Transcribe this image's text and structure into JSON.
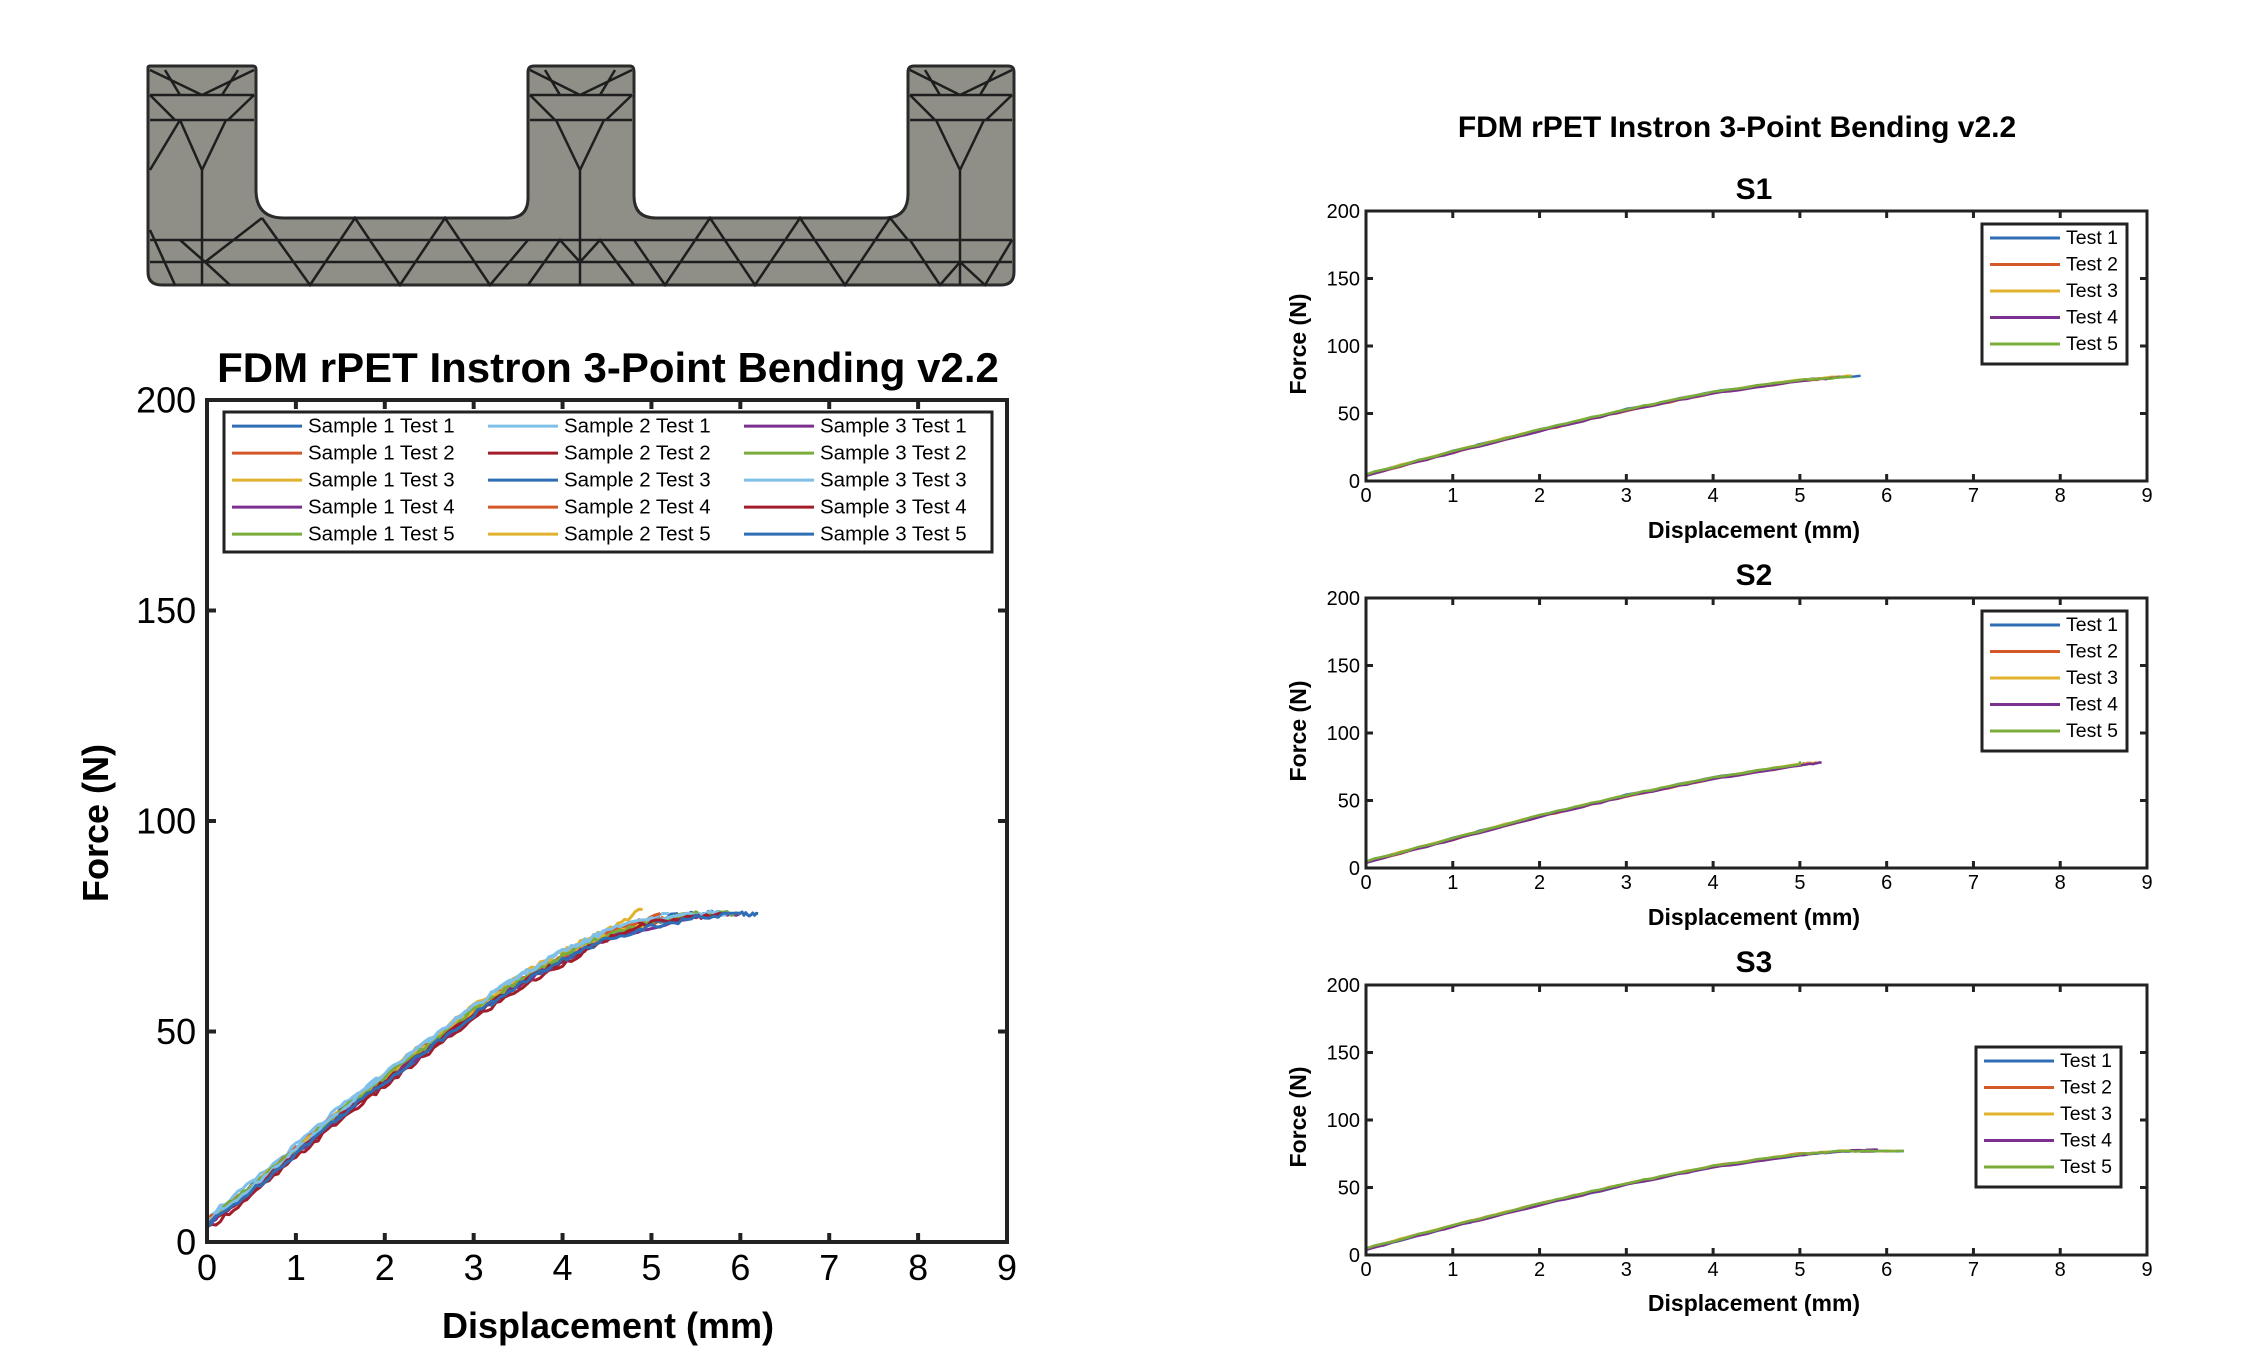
{
  "colors": {
    "blue": "#2f6db5",
    "orange": "#d4582a",
    "yellow": "#e0b22e",
    "purple": "#7b2f8e",
    "green": "#7aac3a",
    "light_blue": "#7fc0e8",
    "dark_red": "#a11d2a",
    "part_fill": "#8f8f88",
    "part_stroke": "#2a2a2a"
  },
  "part_image": {
    "description_icon": "bracket-part-icon"
  },
  "chart_data": [
    {
      "id": "combined",
      "type": "line",
      "title": "FDM rPET Instron 3-Point Bending v2.2",
      "xlabel": "Displacement (mm)",
      "ylabel": "Force (N)",
      "xlim": [
        0,
        9
      ],
      "ylim": [
        0,
        200
      ],
      "xticks": [
        "0",
        "1",
        "2",
        "3",
        "4",
        "5",
        "6",
        "7",
        "8",
        "9"
      ],
      "yticks": [
        "0",
        "50",
        "100",
        "150",
        "200"
      ],
      "grid": false,
      "legend_position": "top",
      "series": [
        {
          "name": "Sample 1 Test 1",
          "color": "#2f6db5",
          "x": [
            0,
            0.5,
            1,
            1.5,
            2,
            2.5,
            3,
            3.5,
            4,
            4.5,
            5,
            5.5,
            5.7
          ],
          "y": [
            5,
            13,
            22,
            31,
            39,
            47,
            55,
            62,
            68,
            73,
            76,
            78,
            78
          ]
        },
        {
          "name": "Sample 1 Test 2",
          "color": "#d4582a",
          "x": [
            0,
            0.5,
            1,
            1.5,
            2,
            2.5,
            3,
            3.5,
            4,
            4.5,
            5,
            5.4
          ],
          "y": [
            4,
            12,
            21,
            30,
            38,
            46,
            54,
            61,
            67,
            72,
            76,
            78
          ]
        },
        {
          "name": "Sample 1 Test 3",
          "color": "#e0b22e",
          "x": [
            0,
            0.5,
            1,
            1.5,
            2,
            2.5,
            3,
            3.5,
            4,
            4.5,
            4.9
          ],
          "y": [
            5,
            13,
            22,
            31,
            40,
            48,
            56,
            63,
            69,
            74,
            79
          ]
        },
        {
          "name": "Sample 1 Test 4",
          "color": "#7b2f8e",
          "x": [
            0,
            0.5,
            1,
            1.5,
            2,
            2.5,
            3,
            3.5,
            4,
            4.5,
            5.1
          ],
          "y": [
            4,
            12,
            21,
            30,
            38,
            46,
            54,
            61,
            67,
            73,
            77
          ]
        },
        {
          "name": "Sample 1 Test 5",
          "color": "#7aac3a",
          "x": [
            0,
            0.5,
            1,
            1.5,
            2,
            2.5,
            3,
            3.5,
            4,
            4.5,
            5,
            5.5
          ],
          "y": [
            5,
            13,
            22,
            31,
            39,
            47,
            55,
            62,
            68,
            73,
            76,
            78
          ]
        },
        {
          "name": "Sample 2 Test 1",
          "color": "#7fc0e8",
          "x": [
            0,
            0.5,
            1,
            1.5,
            2,
            2.5,
            3,
            3.5,
            4,
            4.5,
            5.2
          ],
          "y": [
            6,
            14,
            23,
            32,
            40,
            48,
            56,
            63,
            69,
            74,
            78
          ]
        },
        {
          "name": "Sample 2 Test 2",
          "color": "#a11d2a",
          "x": [
            0,
            0.5,
            1,
            1.5,
            2,
            2.5,
            3,
            3.5,
            4,
            4.5,
            5
          ],
          "y": [
            3,
            11,
            20,
            29,
            37,
            45,
            53,
            60,
            66,
            72,
            77
          ]
        },
        {
          "name": "Sample 2 Test 3",
          "color": "#2f6db5",
          "x": [
            0,
            0.5,
            1,
            1.5,
            2,
            2.5,
            3,
            3.5,
            4,
            4.5,
            5.3
          ],
          "y": [
            4,
            12,
            21,
            30,
            38,
            46,
            54,
            61,
            67,
            72,
            78
          ]
        },
        {
          "name": "Sample 2 Test 4",
          "color": "#d4582a",
          "x": [
            0,
            0.5,
            1,
            1.5,
            2,
            2.5,
            3,
            3.5,
            4,
            4.5,
            5.1
          ],
          "y": [
            5,
            13,
            22,
            31,
            39,
            47,
            55,
            62,
            68,
            73,
            78
          ]
        },
        {
          "name": "Sample 2 Test 5",
          "color": "#e0b22e",
          "x": [
            0,
            0.5,
            1,
            1.5,
            2,
            2.5,
            3,
            3.5,
            4,
            4.5,
            5.2
          ],
          "y": [
            5,
            13,
            22,
            31,
            39,
            47,
            55,
            62,
            68,
            73,
            77
          ]
        },
        {
          "name": "Sample 3 Test 1",
          "color": "#7b2f8e",
          "x": [
            0,
            0.5,
            1,
            1.5,
            2,
            2.5,
            3,
            3.5,
            4,
            4.5,
            5,
            5.5,
            6
          ],
          "y": [
            4,
            12,
            21,
            30,
            38,
            46,
            54,
            61,
            67,
            72,
            75,
            77,
            78
          ]
        },
        {
          "name": "Sample 3 Test 2",
          "color": "#7aac3a",
          "x": [
            0,
            0.5,
            1,
            1.5,
            2,
            2.5,
            3,
            3.5,
            4,
            4.5,
            5,
            5.5,
            6
          ],
          "y": [
            5,
            13,
            22,
            31,
            39,
            47,
            55,
            62,
            68,
            73,
            76,
            78,
            78
          ]
        },
        {
          "name": "Sample 3 Test 3",
          "color": "#7fc0e8",
          "x": [
            0,
            0.5,
            1,
            1.5,
            2,
            2.5,
            3,
            3.5,
            4,
            4.5,
            5,
            5.5,
            5.9
          ],
          "y": [
            5,
            13,
            22,
            31,
            40,
            48,
            56,
            63,
            69,
            74,
            77,
            78,
            78
          ]
        },
        {
          "name": "Sample 3 Test 4",
          "color": "#a11d2a",
          "x": [
            0,
            0.5,
            1,
            1.5,
            2,
            2.5,
            3,
            3.5,
            4,
            4.5,
            5,
            5.5,
            5.8
          ],
          "y": [
            4,
            12,
            21,
            30,
            38,
            46,
            54,
            61,
            67,
            72,
            76,
            77,
            78
          ]
        },
        {
          "name": "Sample 3 Test 5",
          "color": "#2f6db5",
          "x": [
            0,
            0.5,
            1,
            1.5,
            2,
            2.5,
            3,
            3.5,
            4,
            4.5,
            5,
            5.5,
            6,
            6.2
          ],
          "y": [
            4,
            12,
            21,
            30,
            38,
            46,
            54,
            61,
            67,
            72,
            75,
            77,
            78,
            78
          ]
        }
      ]
    },
    {
      "id": "s1",
      "type": "line",
      "suptitle": "FDM rPET Instron 3-Point Bending v2.2",
      "title": "S1",
      "xlabel": "Displacement (mm)",
      "ylabel": "Force (N)",
      "xlim": [
        0,
        9
      ],
      "ylim": [
        0,
        200
      ],
      "xticks": [
        "0",
        "1",
        "2",
        "3",
        "4",
        "5",
        "6",
        "7",
        "8",
        "9"
      ],
      "yticks": [
        "0",
        "50",
        "100",
        "150",
        "200"
      ],
      "grid": false,
      "legend_position": "top-right",
      "series": [
        {
          "name": "Test 1",
          "color": "#2f6db5",
          "x": [
            0,
            1,
            2,
            3,
            4,
            5,
            5.7
          ],
          "y": [
            5,
            22,
            38,
            53,
            66,
            75,
            78
          ]
        },
        {
          "name": "Test 2",
          "color": "#d4582a",
          "x": [
            0,
            1,
            2,
            3,
            4,
            5,
            5.5
          ],
          "y": [
            4,
            21,
            37,
            52,
            65,
            74,
            77
          ]
        },
        {
          "name": "Test 3",
          "color": "#e0b22e",
          "x": [
            0,
            1,
            2,
            3,
            4,
            5,
            5.6
          ],
          "y": [
            5,
            22,
            38,
            53,
            66,
            75,
            78
          ]
        },
        {
          "name": "Test 4",
          "color": "#7b2f8e",
          "x": [
            0,
            1,
            2,
            3,
            4,
            5,
            5.5
          ],
          "y": [
            4,
            21,
            37,
            52,
            65,
            74,
            77
          ]
        },
        {
          "name": "Test 5",
          "color": "#7aac3a",
          "x": [
            0,
            1,
            2,
            3,
            4,
            5,
            5.6
          ],
          "y": [
            5,
            22,
            38,
            53,
            66,
            75,
            77
          ]
        }
      ]
    },
    {
      "id": "s2",
      "type": "line",
      "title": "S2",
      "xlabel": "Displacement (mm)",
      "ylabel": "Force (N)",
      "xlim": [
        0,
        9
      ],
      "ylim": [
        0,
        200
      ],
      "xticks": [
        "0",
        "1",
        "2",
        "3",
        "4",
        "5",
        "6",
        "7",
        "8",
        "9"
      ],
      "yticks": [
        "0",
        "50",
        "100",
        "150",
        "200"
      ],
      "grid": false,
      "legend_position": "top-right",
      "series": [
        {
          "name": "Test 1",
          "color": "#2f6db5",
          "x": [
            0,
            1,
            2,
            3,
            4,
            5,
            5.2
          ],
          "y": [
            5,
            22,
            39,
            54,
            67,
            77,
            78
          ]
        },
        {
          "name": "Test 2",
          "color": "#d4582a",
          "x": [
            0,
            1,
            2,
            3,
            4,
            5,
            5.1
          ],
          "y": [
            4,
            21,
            38,
            53,
            66,
            76,
            78
          ]
        },
        {
          "name": "Test 3",
          "color": "#e0b22e",
          "x": [
            0,
            1,
            2,
            3,
            4,
            5,
            5.2
          ],
          "y": [
            5,
            22,
            39,
            54,
            67,
            77,
            78
          ]
        },
        {
          "name": "Test 4",
          "color": "#7b2f8e",
          "x": [
            0,
            1,
            2,
            3,
            4,
            5,
            5.25
          ],
          "y": [
            4,
            21,
            38,
            53,
            66,
            76,
            78
          ]
        },
        {
          "name": "Test 5",
          "color": "#7aac3a",
          "x": [
            0,
            1,
            2,
            3,
            4,
            5,
            5.0
          ],
          "y": [
            5,
            22,
            39,
            54,
            67,
            77,
            78
          ]
        }
      ]
    },
    {
      "id": "s3",
      "type": "line",
      "title": "S3",
      "xlabel": "Displacement (mm)",
      "ylabel": "Force (N)",
      "xlim": [
        0,
        9
      ],
      "ylim": [
        0,
        200
      ],
      "xticks": [
        "0",
        "1",
        "2",
        "3",
        "4",
        "5",
        "6",
        "7",
        "8",
        "9"
      ],
      "yticks": [
        "0",
        "50",
        "100",
        "150",
        "200"
      ],
      "grid": false,
      "legend_position": "right",
      "series": [
        {
          "name": "Test 1",
          "color": "#2f6db5",
          "x": [
            0,
            1,
            2,
            3,
            4,
            5,
            5.5,
            6.2
          ],
          "y": [
            4,
            21,
            37,
            52,
            65,
            74,
            77,
            77
          ]
        },
        {
          "name": "Test 2",
          "color": "#d4582a",
          "x": [
            0,
            1,
            2,
            3,
            4,
            5,
            5.5,
            6.0
          ],
          "y": [
            5,
            22,
            38,
            53,
            66,
            75,
            77,
            77
          ]
        },
        {
          "name": "Test 3",
          "color": "#e0b22e",
          "x": [
            0,
            1,
            2,
            3,
            4,
            5,
            5.5,
            6.1
          ],
          "y": [
            5,
            22,
            38,
            53,
            66,
            75,
            77,
            77
          ]
        },
        {
          "name": "Test 4",
          "color": "#7b2f8e",
          "x": [
            0,
            1,
            2,
            3,
            4,
            5,
            5.5,
            5.9
          ],
          "y": [
            4,
            21,
            37,
            52,
            65,
            74,
            77,
            78
          ]
        },
        {
          "name": "Test 5",
          "color": "#7aac3a",
          "x": [
            0,
            1,
            2,
            3,
            4,
            5,
            5.5,
            6.2
          ],
          "y": [
            5,
            22,
            38,
            53,
            66,
            75,
            77,
            77
          ]
        }
      ]
    }
  ]
}
